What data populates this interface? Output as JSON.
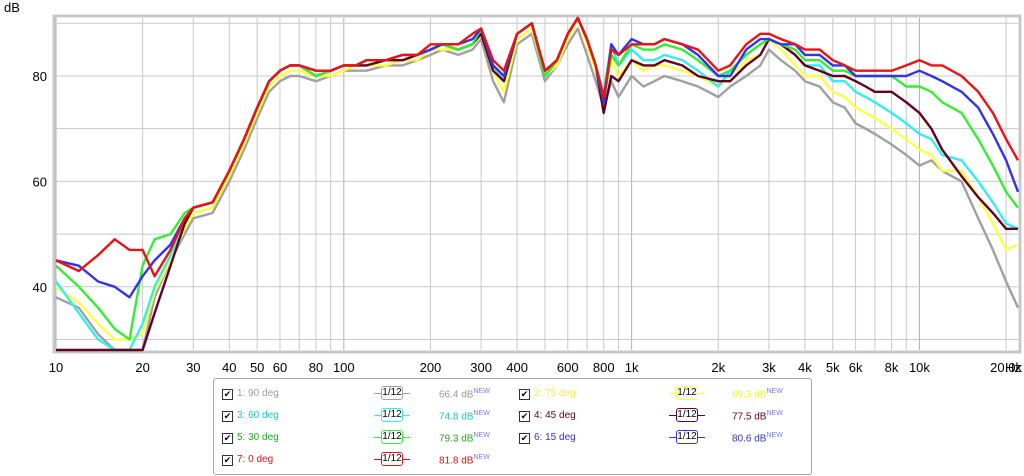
{
  "chart_data": {
    "type": "line",
    "ylabel": "dB",
    "xunit": "Hz",
    "xscale": "log",
    "xlim": [
      10,
      22000
    ],
    "ylim": [
      28,
      91
    ],
    "grid": true,
    "y_ticks": [
      40,
      60,
      80
    ],
    "x_ticks": [
      {
        "v": 10,
        "label": "10"
      },
      {
        "v": 20,
        "label": "20"
      },
      {
        "v": 30,
        "label": "30"
      },
      {
        "v": 40,
        "label": "40"
      },
      {
        "v": 50,
        "label": "50"
      },
      {
        "v": 60,
        "label": "60"
      },
      {
        "v": 80,
        "label": "80"
      },
      {
        "v": 100,
        "label": "100"
      },
      {
        "v": 200,
        "label": "200"
      },
      {
        "v": 300,
        "label": "300"
      },
      {
        "v": 400,
        "label": "400"
      },
      {
        "v": 600,
        "label": "600"
      },
      {
        "v": 800,
        "label": "800"
      },
      {
        "v": 1000,
        "label": "1k"
      },
      {
        "v": 2000,
        "label": "2k"
      },
      {
        "v": 3000,
        "label": "3k"
      },
      {
        "v": 4000,
        "label": "4k"
      },
      {
        "v": 5000,
        "label": "5k"
      },
      {
        "v": 6000,
        "label": "6k"
      },
      {
        "v": 8000,
        "label": "8k"
      },
      {
        "v": 10000,
        "label": "10k"
      },
      {
        "v": 20000,
        "label": "20.0k"
      }
    ],
    "x": [
      10,
      12,
      14,
      16,
      18,
      20,
      22,
      25,
      28,
      30,
      35,
      40,
      45,
      50,
      55,
      60,
      65,
      70,
      80,
      90,
      100,
      110,
      120,
      140,
      160,
      180,
      200,
      220,
      250,
      280,
      300,
      330,
      360,
      400,
      450,
      500,
      550,
      600,
      650,
      700,
      750,
      800,
      850,
      900,
      1000,
      1100,
      1200,
      1300,
      1500,
      1700,
      2000,
      2200,
      2500,
      2800,
      3000,
      3300,
      3700,
      4000,
      4500,
      5000,
      5500,
      6000,
      6500,
      7000,
      8000,
      9000,
      10000,
      11000,
      12000,
      14000,
      16000,
      18000,
      20000,
      22000
    ],
    "series": [
      {
        "name": "1: 90 deg",
        "color": "#a0a0a0",
        "level": "66.4 dB",
        "values": [
          38,
          36,
          31,
          28,
          27,
          28,
          38,
          45,
          50,
          53,
          54,
          60,
          66,
          72,
          77,
          79,
          80,
          80,
          79,
          80,
          81,
          81,
          81,
          82,
          82,
          83,
          84,
          85,
          84,
          85,
          87,
          79,
          75,
          86,
          88,
          79,
          82,
          86,
          89,
          84,
          79,
          74,
          79,
          76,
          80,
          78,
          79,
          80,
          79,
          78,
          76,
          78,
          80,
          82,
          85,
          83,
          81,
          79,
          78,
          75,
          74,
          71,
          70,
          69,
          67,
          65,
          63,
          64,
          62,
          60,
          53,
          47,
          41,
          36
        ]
      },
      {
        "name": "2: 75 deg",
        "color": "#ffff44",
        "level": "69.3 dB",
        "values": [
          40,
          37,
          33,
          30,
          30,
          31,
          39,
          45,
          51,
          54,
          55,
          61,
          67,
          73,
          78,
          80,
          81,
          81,
          80,
          80,
          81,
          82,
          82,
          82,
          83,
          83,
          85,
          85,
          85,
          86,
          88,
          81,
          77,
          87,
          89,
          80,
          82,
          87,
          91,
          86,
          81,
          76,
          83,
          80,
          83,
          81,
          82,
          82,
          81,
          80,
          78,
          80,
          83,
          84,
          87,
          85,
          82,
          80,
          80,
          77,
          76,
          74,
          73,
          72,
          70,
          68,
          66,
          65,
          62,
          62,
          57,
          52,
          47,
          48
        ]
      },
      {
        "name": "3: 60 deg",
        "color": "#33eeee",
        "level": "74.8 dB",
        "values": [
          41,
          35,
          30,
          28,
          28,
          33,
          40,
          46,
          52,
          55,
          56,
          62,
          68,
          74,
          79,
          81,
          82,
          82,
          80,
          81,
          82,
          82,
          82,
          83,
          83,
          84,
          85,
          86,
          85,
          86,
          88,
          82,
          79,
          88,
          90,
          80,
          83,
          88,
          92,
          87,
          82,
          77,
          86,
          82,
          85,
          83,
          83,
          84,
          83,
          81,
          78,
          81,
          84,
          86,
          87,
          86,
          84,
          82,
          82,
          79,
          79,
          77,
          76,
          75,
          73,
          71,
          69,
          68,
          65,
          64,
          60,
          56,
          52,
          51
        ]
      },
      {
        "name": "4: 45 deg",
        "color": "#66001e",
        "level": "77.5 dB",
        "values": [
          28,
          28,
          28,
          28,
          28,
          28,
          35,
          44,
          52,
          55,
          56,
          62,
          68,
          74,
          79,
          81,
          82,
          82,
          80,
          81,
          82,
          82,
          82,
          83,
          83,
          84,
          85,
          86,
          85,
          86,
          88,
          81,
          79,
          88,
          90,
          80,
          83,
          88,
          92,
          87,
          82,
          73,
          80,
          79,
          83,
          82,
          82,
          83,
          82,
          80,
          79,
          79,
          82,
          84,
          87,
          86,
          84,
          82,
          81,
          80,
          80,
          79,
          78,
          77,
          77,
          75,
          73,
          70,
          66,
          61,
          57,
          54,
          51,
          51
        ]
      },
      {
        "name": "5: 30 deg",
        "color": "#33ee33",
        "level": "79.3 dB",
        "values": [
          44,
          40,
          36,
          32,
          30,
          44,
          49,
          50,
          54,
          55,
          56,
          62,
          68,
          74,
          79,
          81,
          82,
          82,
          80,
          81,
          82,
          82,
          83,
          83,
          84,
          84,
          85,
          86,
          85,
          86,
          89,
          82,
          80,
          88,
          90,
          80,
          83,
          88,
          92,
          87,
          82,
          75,
          84,
          82,
          86,
          85,
          85,
          86,
          85,
          83,
          80,
          81,
          84,
          86,
          87,
          86,
          85,
          83,
          83,
          81,
          81,
          80,
          80,
          80,
          80,
          78,
          78,
          77,
          75,
          73,
          68,
          63,
          58,
          55
        ]
      },
      {
        "name": "6: 15 deg",
        "color": "#3333ee",
        "level": "80.6 dB",
        "values": [
          45,
          44,
          41,
          40,
          38,
          42,
          45,
          48,
          53,
          55,
          56,
          62,
          68,
          74,
          79,
          81,
          82,
          82,
          81,
          81,
          82,
          82,
          83,
          83,
          84,
          84,
          85,
          86,
          86,
          87,
          89,
          82,
          80,
          88,
          90,
          81,
          83,
          88,
          92,
          87,
          82,
          75,
          86,
          84,
          87,
          86,
          86,
          87,
          86,
          84,
          80,
          80,
          85,
          87,
          87,
          86,
          86,
          84,
          84,
          82,
          82,
          80,
          80,
          80,
          80,
          80,
          81,
          80,
          79,
          77,
          74,
          69,
          64,
          58
        ]
      },
      {
        "name": "7: 0 deg",
        "color": "#ee1111",
        "level": "81.8 dB",
        "values": [
          45,
          43,
          46,
          49,
          47,
          47,
          42,
          47,
          53,
          55,
          56,
          62,
          68,
          74,
          79,
          81,
          82,
          82,
          81,
          81,
          82,
          82,
          83,
          83,
          84,
          84,
          86,
          86,
          86,
          88,
          89,
          83,
          81,
          88,
          90,
          81,
          83,
          88,
          92,
          87,
          82,
          76,
          85,
          84,
          86,
          86,
          86,
          87,
          86,
          85,
          81,
          82,
          86,
          88,
          88,
          87,
          86,
          85,
          85,
          83,
          82,
          81,
          81,
          81,
          81,
          82,
          83,
          82,
          82,
          80,
          77,
          73,
          68,
          64
        ]
      }
    ]
  },
  "legend": {
    "items": [
      {
        "label": "1: 90 deg",
        "smooth": "1/12",
        "level": "66.4 dB",
        "badge": "NEW",
        "color": "#a0a0a0",
        "text": "#9a9a9a"
      },
      {
        "label": "2: 75 deg",
        "smooth": "1/12",
        "level": "69.3 dB",
        "badge": "NEW",
        "color": "#ffff44",
        "text": "#f5ef34"
      },
      {
        "label": "3: 60 deg",
        "smooth": "1/12",
        "level": "74.8 dB",
        "badge": "NEW",
        "color": "#33eeee",
        "text": "#17c8c8"
      },
      {
        "label": "4: 45 deg",
        "smooth": "1/12",
        "level": "77.5 dB",
        "badge": "NEW",
        "color": "#66001e",
        "text": "#66001e"
      },
      {
        "label": "5: 30 deg",
        "smooth": "1/12",
        "level": "79.3 dB",
        "badge": "NEW",
        "color": "#33ee33",
        "text": "#22aa22"
      },
      {
        "label": "6: 15 deg",
        "smooth": "1/12",
        "level": "80.6 dB",
        "badge": "NEW",
        "color": "#3333ee",
        "text": "#3333cc"
      },
      {
        "label": "7: 0 deg",
        "smooth": "1/12",
        "level": "81.8 dB",
        "badge": "NEW",
        "color": "#ee1111",
        "text": "#dd1111"
      }
    ]
  }
}
